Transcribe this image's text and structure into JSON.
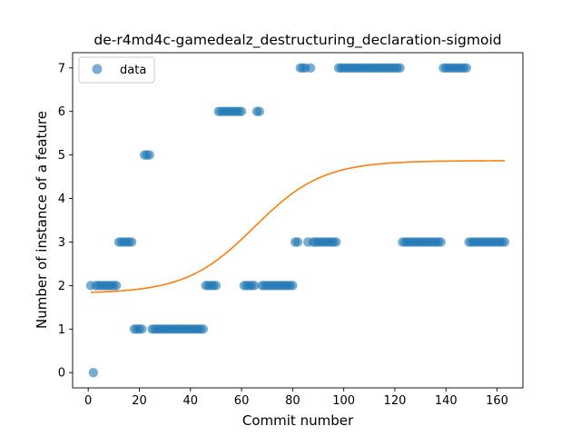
{
  "chart_data": {
    "type": "scatter",
    "title": "de-r4md4c-gamedealz_destructuring_declaration-sigmoid",
    "xlabel": "Commit number",
    "ylabel": "Number of instance of a feature",
    "xlim": [
      -6.1,
      170.1
    ],
    "ylim": [
      -0.35,
      7.35
    ],
    "xticks": [
      0,
      20,
      40,
      60,
      80,
      100,
      120,
      140,
      160
    ],
    "yticks": [
      0,
      1,
      2,
      3,
      4,
      5,
      6,
      7
    ],
    "grid": false,
    "legend": {
      "position": "upper-left",
      "entries": [
        "data"
      ]
    },
    "colors": {
      "data": "#1f77b4",
      "fit": "#ff7f0e"
    },
    "series": [
      {
        "name": "data",
        "kind": "scatter",
        "points": [
          [
            1,
            2
          ],
          [
            2,
            0
          ],
          [
            3,
            2
          ],
          [
            4,
            2
          ],
          [
            5,
            2
          ],
          [
            6,
            2
          ],
          [
            7,
            2
          ],
          [
            8,
            2
          ],
          [
            9,
            2
          ],
          [
            10,
            2
          ],
          [
            11,
            2
          ],
          [
            12,
            3
          ],
          [
            13,
            3
          ],
          [
            14,
            3
          ],
          [
            15,
            3
          ],
          [
            16,
            3
          ],
          [
            17,
            3
          ],
          [
            18,
            1
          ],
          [
            19,
            1
          ],
          [
            20,
            1
          ],
          [
            21,
            1
          ],
          [
            22,
            5
          ],
          [
            23,
            5
          ],
          [
            24,
            5
          ],
          [
            25,
            1
          ],
          [
            26,
            1
          ],
          [
            27,
            1
          ],
          [
            28,
            1
          ],
          [
            29,
            1
          ],
          [
            30,
            1
          ],
          [
            31,
            1
          ],
          [
            32,
            1
          ],
          [
            33,
            1
          ],
          [
            34,
            1
          ],
          [
            35,
            1
          ],
          [
            36,
            1
          ],
          [
            37,
            1
          ],
          [
            38,
            1
          ],
          [
            39,
            1
          ],
          [
            40,
            1
          ],
          [
            41,
            1
          ],
          [
            42,
            1
          ],
          [
            43,
            1
          ],
          [
            44,
            1
          ],
          [
            45,
            1
          ],
          [
            46,
            2
          ],
          [
            47,
            2
          ],
          [
            48,
            2
          ],
          [
            49,
            2
          ],
          [
            50,
            2
          ],
          [
            51,
            6
          ],
          [
            52,
            6
          ],
          [
            53,
            6
          ],
          [
            54,
            6
          ],
          [
            55,
            6
          ],
          [
            56,
            6
          ],
          [
            57,
            6
          ],
          [
            58,
            6
          ],
          [
            59,
            6
          ],
          [
            60,
            6
          ],
          [
            61,
            2
          ],
          [
            62,
            2
          ],
          [
            63,
            2
          ],
          [
            64,
            2
          ],
          [
            65,
            2
          ],
          [
            66,
            6
          ],
          [
            67,
            6
          ],
          [
            68,
            2
          ],
          [
            69,
            2
          ],
          [
            70,
            2
          ],
          [
            71,
            2
          ],
          [
            72,
            2
          ],
          [
            73,
            2
          ],
          [
            74,
            2
          ],
          [
            75,
            2
          ],
          [
            76,
            2
          ],
          [
            77,
            2
          ],
          [
            78,
            2
          ],
          [
            79,
            2
          ],
          [
            80,
            2
          ],
          [
            81,
            3
          ],
          [
            82,
            3
          ],
          [
            83,
            7
          ],
          [
            84,
            7
          ],
          [
            85,
            7
          ],
          [
            86,
            3
          ],
          [
            87,
            7
          ],
          [
            88,
            3
          ],
          [
            89,
            3
          ],
          [
            90,
            3
          ],
          [
            91,
            3
          ],
          [
            92,
            3
          ],
          [
            93,
            3
          ],
          [
            94,
            3
          ],
          [
            95,
            3
          ],
          [
            96,
            3
          ],
          [
            97,
            3
          ],
          [
            98,
            7
          ],
          [
            99,
            7
          ],
          [
            100,
            7
          ],
          [
            101,
            7
          ],
          [
            102,
            7
          ],
          [
            103,
            7
          ],
          [
            104,
            7
          ],
          [
            105,
            7
          ],
          [
            106,
            7
          ],
          [
            107,
            7
          ],
          [
            108,
            7
          ],
          [
            109,
            7
          ],
          [
            110,
            7
          ],
          [
            111,
            7
          ],
          [
            112,
            7
          ],
          [
            113,
            7
          ],
          [
            114,
            7
          ],
          [
            115,
            7
          ],
          [
            116,
            7
          ],
          [
            117,
            7
          ],
          [
            118,
            7
          ],
          [
            119,
            7
          ],
          [
            120,
            7
          ],
          [
            121,
            7
          ],
          [
            122,
            7
          ],
          [
            123,
            3
          ],
          [
            124,
            3
          ],
          [
            125,
            3
          ],
          [
            126,
            3
          ],
          [
            127,
            3
          ],
          [
            128,
            3
          ],
          [
            129,
            3
          ],
          [
            130,
            3
          ],
          [
            131,
            3
          ],
          [
            132,
            3
          ],
          [
            133,
            3
          ],
          [
            134,
            3
          ],
          [
            135,
            3
          ],
          [
            136,
            3
          ],
          [
            137,
            3
          ],
          [
            138,
            3
          ],
          [
            139,
            7
          ],
          [
            140,
            7
          ],
          [
            141,
            7
          ],
          [
            142,
            7
          ],
          [
            143,
            7
          ],
          [
            144,
            7
          ],
          [
            145,
            7
          ],
          [
            146,
            7
          ],
          [
            147,
            7
          ],
          [
            148,
            7
          ],
          [
            149,
            3
          ],
          [
            150,
            3
          ],
          [
            151,
            3
          ],
          [
            152,
            3
          ],
          [
            153,
            3
          ],
          [
            154,
            3
          ],
          [
            155,
            3
          ],
          [
            156,
            3
          ],
          [
            157,
            3
          ],
          [
            158,
            3
          ],
          [
            159,
            3
          ],
          [
            160,
            3
          ],
          [
            161,
            3
          ],
          [
            162,
            3
          ],
          [
            163,
            3
          ]
        ]
      },
      {
        "kind": "line",
        "sigmoid": {
          "L": 3.05,
          "x0": 65,
          "k": 0.075,
          "b": 1.82,
          "xmin": 1,
          "xmax": 163
        }
      }
    ]
  }
}
